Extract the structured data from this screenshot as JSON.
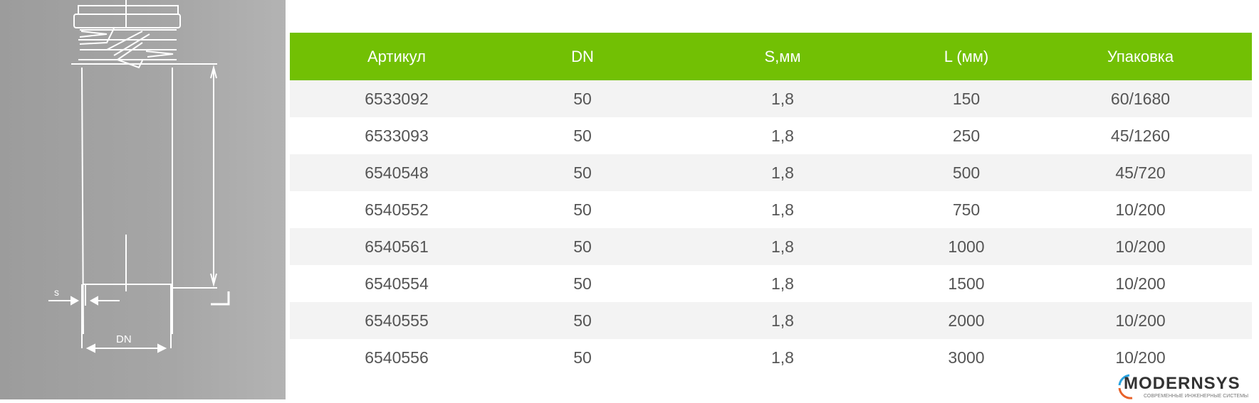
{
  "drawing": {
    "label_s": "S",
    "label_dn": "DN",
    "label_l": "L"
  },
  "table": {
    "headers": [
      "Артикул",
      "DN",
      "S,мм",
      "L (мм)",
      "Упаковка"
    ],
    "rows": [
      [
        "6533092",
        "50",
        "1,8",
        "150",
        "60/1680"
      ],
      [
        "6533093",
        "50",
        "1,8",
        "250",
        "45/1260"
      ],
      [
        "6540548",
        "50",
        "1,8",
        "500",
        "45/720"
      ],
      [
        "6540552",
        "50",
        "1,8",
        "750",
        "10/200"
      ],
      [
        "6540561",
        "50",
        "1,8",
        "1000",
        "10/200"
      ],
      [
        "6540554",
        "50",
        "1,8",
        "1500",
        "10/200"
      ],
      [
        "6540555",
        "50",
        "1,8",
        "2000",
        "10/200"
      ],
      [
        "6540556",
        "50",
        "1,8",
        "3000",
        "10/200"
      ]
    ],
    "header_color": "#72c004"
  },
  "logo": {
    "name": "MODERNSYS",
    "tagline": "СОВРЕМЕННЫЕ ИНЖЕНЕРНЫЕ СИСТЕМЫ"
  }
}
